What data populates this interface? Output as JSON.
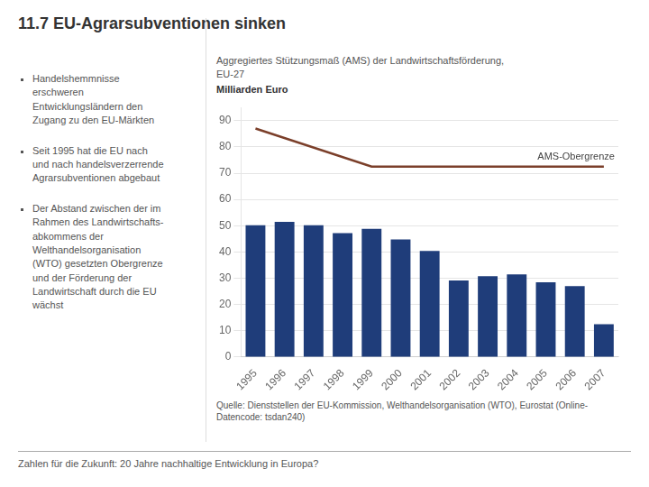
{
  "chart_data": {
    "type": "bar",
    "title": "11.7 EU-Agrarsubventionen sinken",
    "subtitle": [
      "Aggregiertes Stützungsmaß (AMS) der Landwirtschaftsförderung,",
      "EU-27"
    ],
    "ylabel": "Milliarden Euro",
    "categories": [
      1995,
      1996,
      1997,
      1998,
      1999,
      2000,
      2001,
      2002,
      2003,
      2004,
      2005,
      2006,
      2007
    ],
    "series": [
      {
        "type": "bar",
        "color": "#1f3d7a",
        "values": [
          50.2,
          51.5,
          50.2,
          47.2,
          48.8,
          44.8,
          40.4,
          29.2,
          30.8,
          31.5,
          28.5,
          27.0,
          12.5
        ]
      },
      {
        "type": "line",
        "name": "AMS-Obergrenze",
        "color": "#7b3f2a",
        "x": [
          1995,
          1999,
          2000,
          2007
        ],
        "values": [
          87.0,
          72.5,
          72.5,
          72.5
        ]
      }
    ],
    "ylim": [
      0,
      95
    ],
    "yticks": [
      0,
      10,
      20,
      30,
      40,
      50,
      60,
      70,
      80,
      90
    ],
    "grid": true,
    "notes": [
      "Handelshemmnisse\nerschweren\nEntwicklungsländern den\nZugang zu den EU-Märkten",
      "Seit 1995 hat die EU nach\nund nach handelsverzerrende\nAgrarsubventionen abgebaut",
      "Der Abstand zwischen der im\nRahmen des Landwirtschafts-\nabkommens der\nWelthandelsorganisation\n(WTO) gesetzten Obergrenze\nund der Förderung der\nLandwirtschaft durch die EU\nwächst"
    ],
    "source": "Quelle: Dienststellen der EU-Kommission, Welthandelsorganisation (WTO), Eurostat (Online-\nDatencode: tsdan240)",
    "footer": "Zahlen für die Zukunft: 20 Jahre nachhaltige Entwicklung in Europa?"
  }
}
